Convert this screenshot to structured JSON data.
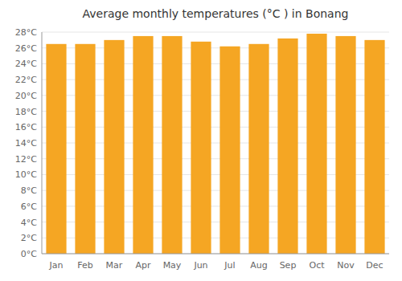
{
  "chart_data": {
    "type": "bar",
    "title": "Average monthly temperatures (°C ) in Bonang",
    "categories": [
      "Jan",
      "Feb",
      "Mar",
      "Apr",
      "May",
      "Jun",
      "Jul",
      "Aug",
      "Sep",
      "Oct",
      "Nov",
      "Dec"
    ],
    "values": [
      26.5,
      26.5,
      27.0,
      27.5,
      27.5,
      26.8,
      26.2,
      26.5,
      27.2,
      27.8,
      27.5,
      27.0
    ],
    "color": "#F5A623",
    "ylim": [
      0,
      28
    ],
    "yticks": [
      {
        "value": 0,
        "label": "0°C"
      },
      {
        "value": 2,
        "label": "2°C"
      },
      {
        "value": 4,
        "label": "4°C"
      },
      {
        "value": 6,
        "label": "6°C"
      },
      {
        "value": 8,
        "label": "8°C"
      },
      {
        "value": 10,
        "label": "10°C"
      },
      {
        "value": 12,
        "label": "12°C"
      },
      {
        "value": 14,
        "label": "14°C"
      },
      {
        "value": 16,
        "label": "16°C"
      },
      {
        "value": 18,
        "label": "18°C"
      },
      {
        "value": 20,
        "label": "20°C"
      },
      {
        "value": 22,
        "label": "22°C"
      },
      {
        "value": 24,
        "label": "24°C"
      },
      {
        "value": 26,
        "label": "26°C"
      },
      {
        "value": 28,
        "label": "28°C"
      }
    ],
    "grid": true
  }
}
